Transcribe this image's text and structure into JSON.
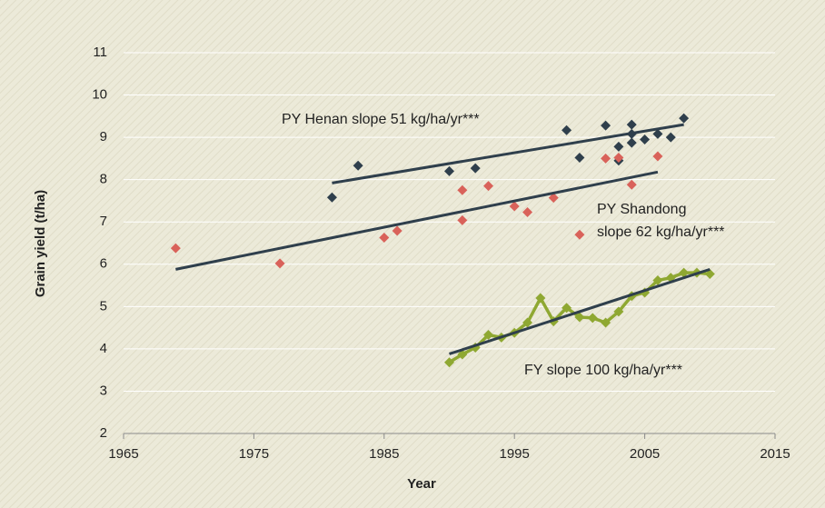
{
  "chart_data": {
    "type": "scatter",
    "xlabel": "Year",
    "ylabel": "Grain yield (t/ha)",
    "xlim": [
      1965,
      2015
    ],
    "xticks": [
      1965,
      1975,
      1985,
      1995,
      2005,
      2015
    ],
    "ylim": [
      2,
      11
    ],
    "yticks": [
      2,
      3,
      4,
      5,
      6,
      7,
      8,
      9,
      10,
      11
    ],
    "grid": true,
    "series": [
      {
        "color": "#2f3f4c",
        "mode": "markers",
        "x": [
          1981,
          1983,
          1990,
          1992,
          1999,
          2000,
          2002,
          2003,
          2003,
          2004,
          2004,
          2004,
          2005,
          2006,
          2007,
          2008
        ],
        "values": [
          7.58,
          8.33,
          8.2,
          8.27,
          9.17,
          8.52,
          9.28,
          8.45,
          8.78,
          9.3,
          9.08,
          8.87,
          8.95,
          9.08,
          9.0,
          9.45
        ]
      },
      {
        "color": "#d9625a",
        "mode": "markers",
        "x": [
          1969,
          1977,
          1985,
          1986,
          1991,
          1991,
          1993,
          1995,
          1996,
          1998,
          2000,
          2002,
          2003,
          2004,
          2006
        ],
        "values": [
          6.38,
          6.02,
          6.63,
          6.79,
          7.75,
          7.04,
          7.85,
          7.37,
          7.23,
          7.57,
          6.7,
          8.5,
          8.52,
          7.88,
          8.55
        ]
      },
      {
        "color": "#8fa832",
        "mode": "lines+markers",
        "x": [
          1990,
          1991,
          1992,
          1993,
          1994,
          1995,
          1996,
          1997,
          1998,
          1999,
          2000,
          2001,
          2002,
          2003,
          2004,
          2005,
          2006,
          2007,
          2008,
          2009,
          2010
        ],
        "values": [
          3.68,
          3.87,
          4.03,
          4.33,
          4.27,
          4.38,
          4.62,
          5.2,
          4.65,
          4.97,
          4.75,
          4.73,
          4.62,
          4.88,
          5.25,
          5.33,
          5.62,
          5.68,
          5.8,
          5.8,
          5.77
        ]
      },
      {
        "color": "#2f3f4c",
        "mode": "lines",
        "x": [
          1981,
          2008
        ],
        "values": [
          7.92,
          9.3
        ]
      },
      {
        "color": "#2f3f4c",
        "mode": "lines",
        "x": [
          1969,
          2006
        ],
        "values": [
          5.88,
          8.18
        ]
      },
      {
        "color": "#2f3f4c",
        "mode": "lines",
        "x": [
          1990,
          2010
        ],
        "values": [
          3.88,
          5.88
        ]
      }
    ],
    "annotations": [
      "PY Henan slope 51 kg/ha/yr***",
      "PY Shandong",
      "slope 62 kg/ha/yr***",
      "FY slope 100 kg/ha/yr***"
    ]
  }
}
